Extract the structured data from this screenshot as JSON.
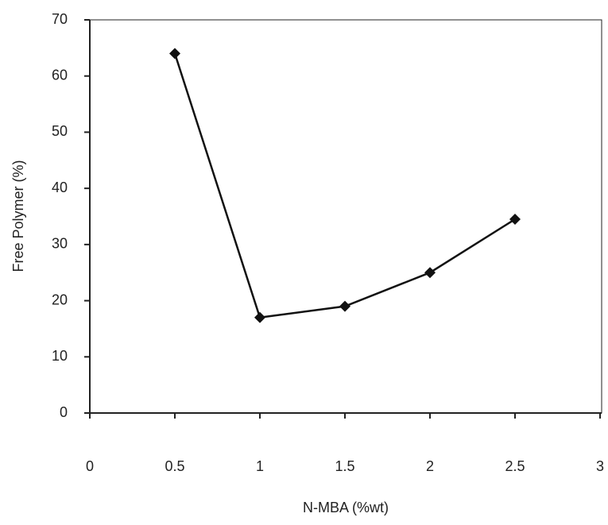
{
  "chart_data": {
    "type": "line",
    "x_label": "N-MBA (%wt)",
    "y_label": "Free Polymer (%)",
    "x": [
      0.5,
      1,
      1.5,
      2,
      2.5
    ],
    "series": [
      {
        "color": "#111111",
        "values": [
          64,
          17,
          19,
          25,
          34.5
        ]
      }
    ],
    "xlim": [
      0,
      3
    ],
    "xticks": [
      0,
      0.5,
      1,
      1.5,
      2,
      2.5,
      3
    ],
    "ylim": [
      0,
      70
    ],
    "yticks": [
      0,
      10,
      20,
      30,
      40,
      50,
      60,
      70
    ]
  }
}
